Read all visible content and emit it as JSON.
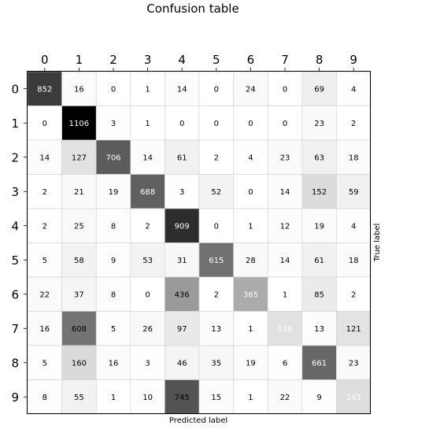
{
  "chart_data": {
    "type": "heatmap",
    "title": "Confusion table",
    "xlabel": "Predicted label",
    "ylabel": "True label",
    "x_categories": [
      "0",
      "1",
      "2",
      "3",
      "4",
      "5",
      "6",
      "7",
      "8",
      "9"
    ],
    "y_categories": [
      "0",
      "1",
      "2",
      "3",
      "4",
      "5",
      "6",
      "7",
      "8",
      "9"
    ],
    "colormap": "greys",
    "value_range": [
      0,
      1106
    ],
    "grid": true,
    "xticks_position": "top",
    "ylabel_position": "right",
    "values": [
      [
        852,
        16,
        0,
        1,
        14,
        0,
        24,
        0,
        69,
        4
      ],
      [
        0,
        1106,
        3,
        1,
        0,
        0,
        0,
        0,
        23,
        2
      ],
      [
        14,
        127,
        706,
        14,
        61,
        2,
        4,
        23,
        63,
        18
      ],
      [
        2,
        21,
        19,
        688,
        3,
        52,
        0,
        14,
        152,
        59
      ],
      [
        2,
        25,
        8,
        2,
        909,
        0,
        1,
        12,
        19,
        4
      ],
      [
        5,
        58,
        9,
        53,
        31,
        615,
        28,
        14,
        61,
        18
      ],
      [
        22,
        37,
        8,
        0,
        436,
        2,
        365,
        1,
        85,
        2
      ],
      [
        16,
        608,
        5,
        26,
        97,
        13,
        1,
        128,
        13,
        121
      ],
      [
        5,
        160,
        16,
        3,
        46,
        35,
        19,
        6,
        661,
        23
      ],
      [
        8,
        55,
        1,
        10,
        745,
        15,
        1,
        22,
        9,
        143
      ]
    ],
    "cell_text_colors": [
      [
        "#ffffff",
        "#000000",
        "#000000",
        "#000000",
        "#000000",
        "#000000",
        "#000000",
        "#000000",
        "#000000",
        "#000000"
      ],
      [
        "#000000",
        "#ffffff",
        "#000000",
        "#000000",
        "#000000",
        "#000000",
        "#000000",
        "#000000",
        "#000000",
        "#000000"
      ],
      [
        "#000000",
        "#000000",
        "#ffffff",
        "#000000",
        "#000000",
        "#000000",
        "#000000",
        "#000000",
        "#000000",
        "#000000"
      ],
      [
        "#000000",
        "#000000",
        "#000000",
        "#ffffff",
        "#000000",
        "#000000",
        "#000000",
        "#000000",
        "#000000",
        "#000000"
      ],
      [
        "#000000",
        "#000000",
        "#000000",
        "#000000",
        "#ffffff",
        "#000000",
        "#000000",
        "#000000",
        "#000000",
        "#000000"
      ],
      [
        "#000000",
        "#000000",
        "#000000",
        "#000000",
        "#000000",
        "#ffffff",
        "#000000",
        "#000000",
        "#000000",
        "#000000"
      ],
      [
        "#000000",
        "#000000",
        "#000000",
        "#000000",
        "#000000",
        "#000000",
        "#ffffff",
        "#000000",
        "#000000",
        "#000000"
      ],
      [
        "#000000",
        "#000000",
        "#000000",
        "#000000",
        "#000000",
        "#000000",
        "#000000",
        "#ffffff",
        "#000000",
        "#000000"
      ],
      [
        "#000000",
        "#000000",
        "#000000",
        "#000000",
        "#000000",
        "#000000",
        "#000000",
        "#000000",
        "#ffffff",
        "#000000"
      ],
      [
        "#000000",
        "#000000",
        "#000000",
        "#000000",
        "#000000",
        "#000000",
        "#000000",
        "#000000",
        "#000000",
        "#ffffff"
      ]
    ]
  }
}
